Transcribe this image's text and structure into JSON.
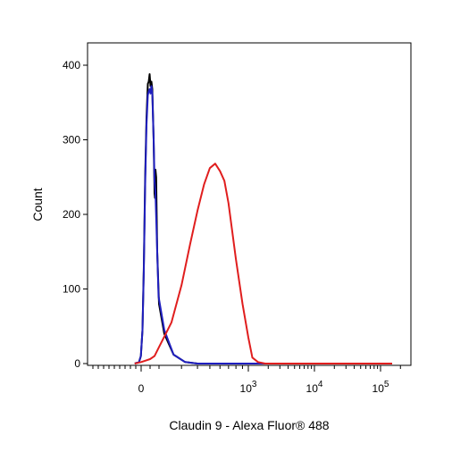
{
  "chart_data": {
    "type": "line",
    "xlabel": "Claudin 9 - Alexa Fluor® 488",
    "ylabel": "Count",
    "ylim": [
      0,
      400
    ],
    "y_ticks": [
      {
        "value": 0,
        "label": "0"
      },
      {
        "value": 100,
        "label": "100"
      },
      {
        "value": 200,
        "label": "200"
      },
      {
        "value": 300,
        "label": "300"
      },
      {
        "value": 400,
        "label": "400"
      }
    ],
    "x_ticks": [
      {
        "value": 0,
        "label": "0",
        "sup": ""
      },
      {
        "value": 1000,
        "label": "10",
        "sup": "3"
      },
      {
        "value": 10000,
        "label": "10",
        "sup": "4"
      },
      {
        "value": 100000,
        "label": "10",
        "sup": "5"
      }
    ],
    "x_scale": "biexponential",
    "grid": false,
    "series": [
      {
        "color": "#000000",
        "points": [
          [
            -120,
            0
          ],
          [
            -40,
            2
          ],
          [
            -5,
            10
          ],
          [
            15,
            45
          ],
          [
            30,
            130
          ],
          [
            45,
            250
          ],
          [
            60,
            330
          ],
          [
            75,
            375
          ],
          [
            85,
            378
          ],
          [
            95,
            388
          ],
          [
            105,
            372
          ],
          [
            115,
            378
          ],
          [
            125,
            368
          ],
          [
            140,
            300
          ],
          [
            150,
            228
          ],
          [
            155,
            222
          ],
          [
            160,
            260
          ],
          [
            168,
            250
          ],
          [
            180,
            150
          ],
          [
            200,
            80
          ],
          [
            220,
            40
          ],
          [
            260,
            12
          ],
          [
            320,
            2
          ],
          [
            400,
            0
          ],
          [
            150000,
            0
          ]
        ]
      },
      {
        "color": "#1f1fbf",
        "points": [
          [
            -120,
            0
          ],
          [
            -40,
            2
          ],
          [
            -5,
            10
          ],
          [
            15,
            45
          ],
          [
            30,
            125
          ],
          [
            45,
            240
          ],
          [
            60,
            320
          ],
          [
            75,
            360
          ],
          [
            85,
            365
          ],
          [
            95,
            368
          ],
          [
            105,
            362
          ],
          [
            115,
            372
          ],
          [
            125,
            362
          ],
          [
            140,
            300
          ],
          [
            150,
            245
          ],
          [
            160,
            230
          ],
          [
            175,
            170
          ],
          [
            195,
            90
          ],
          [
            220,
            45
          ],
          [
            260,
            12
          ],
          [
            320,
            2
          ],
          [
            400,
            0
          ],
          [
            150000,
            0
          ]
        ]
      },
      {
        "color": "#e01e1e",
        "points": [
          [
            -120,
            0
          ],
          [
            -60,
            1
          ],
          [
            0,
            2
          ],
          [
            50,
            4
          ],
          [
            100,
            6
          ],
          [
            150,
            10
          ],
          [
            200,
            22
          ],
          [
            250,
            55
          ],
          [
            300,
            105
          ],
          [
            350,
            160
          ],
          [
            400,
            205
          ],
          [
            450,
            240
          ],
          [
            500,
            262
          ],
          [
            550,
            268
          ],
          [
            600,
            258
          ],
          [
            650,
            245
          ],
          [
            700,
            215
          ],
          [
            800,
            140
          ],
          [
            900,
            80
          ],
          [
            1000,
            35
          ],
          [
            1150,
            8
          ],
          [
            1400,
            2
          ],
          [
            1800,
            0
          ],
          [
            150000,
            0
          ]
        ]
      }
    ]
  }
}
